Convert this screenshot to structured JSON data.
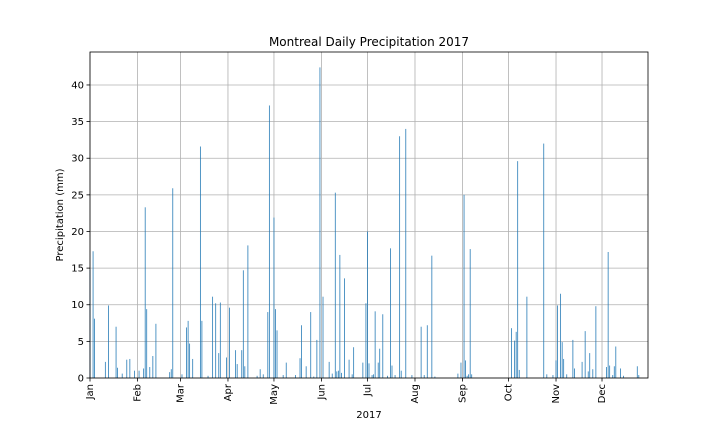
{
  "chart_data": {
    "type": "bar",
    "title": "Montreal Daily Precipitation 2017",
    "xlabel": "2017",
    "ylabel": "Precipitation (mm)",
    "ylim": [
      0,
      44.5
    ],
    "xlim": [
      "2017-01-01",
      "2017-12-31"
    ],
    "grid": true,
    "bar_color": "#1f77b4",
    "y_ticks": [
      0,
      5,
      10,
      15,
      20,
      25,
      30,
      35,
      40
    ],
    "x_ticks": [
      {
        "date": "2017-01-01",
        "label": "Jan"
      },
      {
        "date": "2017-02-01",
        "label": "Feb"
      },
      {
        "date": "2017-03-01",
        "label": "Mar"
      },
      {
        "date": "2017-04-01",
        "label": "Apr"
      },
      {
        "date": "2017-05-01",
        "label": "May"
      },
      {
        "date": "2017-06-01",
        "label": "Jun"
      },
      {
        "date": "2017-07-01",
        "label": "Jul"
      },
      {
        "date": "2017-08-01",
        "label": "Aug"
      },
      {
        "date": "2017-09-01",
        "label": "Sep"
      },
      {
        "date": "2017-10-01",
        "label": "Oct"
      },
      {
        "date": "2017-11-01",
        "label": "Nov"
      },
      {
        "date": "2017-12-01",
        "label": "Dec"
      }
    ],
    "series": [
      {
        "points": [
          [
            "2017-01-01",
            14.8
          ],
          [
            "2017-01-03",
            17.3
          ],
          [
            "2017-01-04",
            8.1
          ],
          [
            "2017-01-11",
            2.2
          ],
          [
            "2017-01-13",
            9.9
          ],
          [
            "2017-01-18",
            7.0
          ],
          [
            "2017-01-19",
            1.4
          ],
          [
            "2017-01-22",
            0.6
          ],
          [
            "2017-01-25",
            2.5
          ],
          [
            "2017-01-27",
            2.6
          ],
          [
            "2017-01-30",
            1.0
          ],
          [
            "2017-02-02",
            1.0
          ],
          [
            "2017-02-05",
            1.3
          ],
          [
            "2017-02-06",
            23.3
          ],
          [
            "2017-02-07",
            9.4
          ],
          [
            "2017-02-09",
            1.5
          ],
          [
            "2017-02-11",
            3.0
          ],
          [
            "2017-02-13",
            7.4
          ],
          [
            "2017-02-22",
            0.8
          ],
          [
            "2017-02-23",
            1.2
          ],
          [
            "2017-02-24",
            25.9
          ],
          [
            "2017-03-02",
            0.5
          ],
          [
            "2017-03-05",
            6.9
          ],
          [
            "2017-03-06",
            7.8
          ],
          [
            "2017-03-07",
            4.7
          ],
          [
            "2017-03-09",
            2.6
          ],
          [
            "2017-03-14",
            31.6
          ],
          [
            "2017-03-15",
            7.8
          ],
          [
            "2017-03-19",
            0.3
          ],
          [
            "2017-03-22",
            11.1
          ],
          [
            "2017-03-24",
            10.2
          ],
          [
            "2017-03-26",
            3.4
          ],
          [
            "2017-03-27",
            10.3
          ],
          [
            "2017-03-31",
            2.8
          ],
          [
            "2017-04-02",
            9.6
          ],
          [
            "2017-04-06",
            3.8
          ],
          [
            "2017-04-07",
            1.9
          ],
          [
            "2017-04-10",
            3.8
          ],
          [
            "2017-04-11",
            14.7
          ],
          [
            "2017-04-12",
            1.6
          ],
          [
            "2017-04-14",
            18.1
          ],
          [
            "2017-04-20",
            0.3
          ],
          [
            "2017-04-22",
            1.2
          ],
          [
            "2017-04-24",
            0.5
          ],
          [
            "2017-04-27",
            9.0
          ],
          [
            "2017-04-28",
            37.2
          ],
          [
            "2017-05-01",
            21.9
          ],
          [
            "2017-05-02",
            9.4
          ],
          [
            "2017-05-03",
            6.5
          ],
          [
            "2017-05-07",
            0.4
          ],
          [
            "2017-05-09",
            2.1
          ],
          [
            "2017-05-15",
            0.4
          ],
          [
            "2017-05-18",
            2.7
          ],
          [
            "2017-05-19",
            7.2
          ],
          [
            "2017-05-22",
            1.6
          ],
          [
            "2017-05-25",
            9.0
          ],
          [
            "2017-05-27",
            0.2
          ],
          [
            "2017-05-29",
            5.2
          ],
          [
            "2017-05-31",
            42.4
          ],
          [
            "2017-06-02",
            11.1
          ],
          [
            "2017-06-06",
            2.2
          ],
          [
            "2017-06-08",
            0.6
          ],
          [
            "2017-06-10",
            25.3
          ],
          [
            "2017-06-11",
            0.9
          ],
          [
            "2017-06-12",
            1.0
          ],
          [
            "2017-06-13",
            16.8
          ],
          [
            "2017-06-14",
            0.7
          ],
          [
            "2017-06-16",
            13.6
          ],
          [
            "2017-06-19",
            2.5
          ],
          [
            "2017-06-21",
            0.5
          ],
          [
            "2017-06-22",
            4.2
          ],
          [
            "2017-06-28",
            2.1
          ],
          [
            "2017-06-30",
            10.2
          ],
          [
            "2017-07-01",
            20.0
          ],
          [
            "2017-07-02",
            2.0
          ],
          [
            "2017-07-04",
            0.4
          ],
          [
            "2017-07-05",
            0.5
          ],
          [
            "2017-07-06",
            9.1
          ],
          [
            "2017-07-08",
            2.1
          ],
          [
            "2017-07-09",
            4.0
          ],
          [
            "2017-07-11",
            8.7
          ],
          [
            "2017-07-14",
            0.3
          ],
          [
            "2017-07-16",
            17.7
          ],
          [
            "2017-07-17",
            1.7
          ],
          [
            "2017-07-19",
            0.4
          ],
          [
            "2017-07-22",
            33.0
          ],
          [
            "2017-07-23",
            1.0
          ],
          [
            "2017-07-26",
            34.0
          ],
          [
            "2017-07-30",
            0.4
          ],
          [
            "2017-08-05",
            7.0
          ],
          [
            "2017-08-07",
            0.4
          ],
          [
            "2017-08-09",
            7.2
          ],
          [
            "2017-08-12",
            16.7
          ],
          [
            "2017-08-14",
            0.2
          ],
          [
            "2017-08-29",
            0.6
          ],
          [
            "2017-08-31",
            2.1
          ],
          [
            "2017-09-02",
            25.0
          ],
          [
            "2017-09-03",
            2.4
          ],
          [
            "2017-09-04",
            0.3
          ],
          [
            "2017-09-05",
            0.5
          ],
          [
            "2017-09-06",
            17.6
          ],
          [
            "2017-09-07",
            0.5
          ],
          [
            "2017-10-03",
            6.8
          ],
          [
            "2017-10-05",
            5.1
          ],
          [
            "2017-10-06",
            6.3
          ],
          [
            "2017-10-07",
            29.6
          ],
          [
            "2017-10-08",
            1.1
          ],
          [
            "2017-10-13",
            11.1
          ],
          [
            "2017-10-24",
            32.0
          ],
          [
            "2017-10-26",
            0.5
          ],
          [
            "2017-10-30",
            0.4
          ],
          [
            "2017-11-01",
            2.4
          ],
          [
            "2017-11-02",
            9.9
          ],
          [
            "2017-11-04",
            11.5
          ],
          [
            "2017-11-05",
            4.9
          ],
          [
            "2017-11-06",
            2.6
          ],
          [
            "2017-11-08",
            0.5
          ],
          [
            "2017-11-12",
            5.2
          ],
          [
            "2017-11-13",
            1.3
          ],
          [
            "2017-11-18",
            2.2
          ],
          [
            "2017-11-20",
            6.4
          ],
          [
            "2017-11-22",
            0.9
          ],
          [
            "2017-11-23",
            3.4
          ],
          [
            "2017-11-25",
            1.2
          ],
          [
            "2017-11-27",
            9.8
          ],
          [
            "2017-12-04",
            1.5
          ],
          [
            "2017-12-05",
            17.2
          ],
          [
            "2017-12-06",
            1.7
          ],
          [
            "2017-12-08",
            0.4
          ],
          [
            "2017-12-09",
            1.6
          ],
          [
            "2017-12-10",
            4.3
          ],
          [
            "2017-12-13",
            1.3
          ],
          [
            "2017-12-15",
            0.3
          ],
          [
            "2017-12-24",
            1.6
          ],
          [
            "2017-12-25",
            0.4
          ]
        ]
      }
    ]
  }
}
